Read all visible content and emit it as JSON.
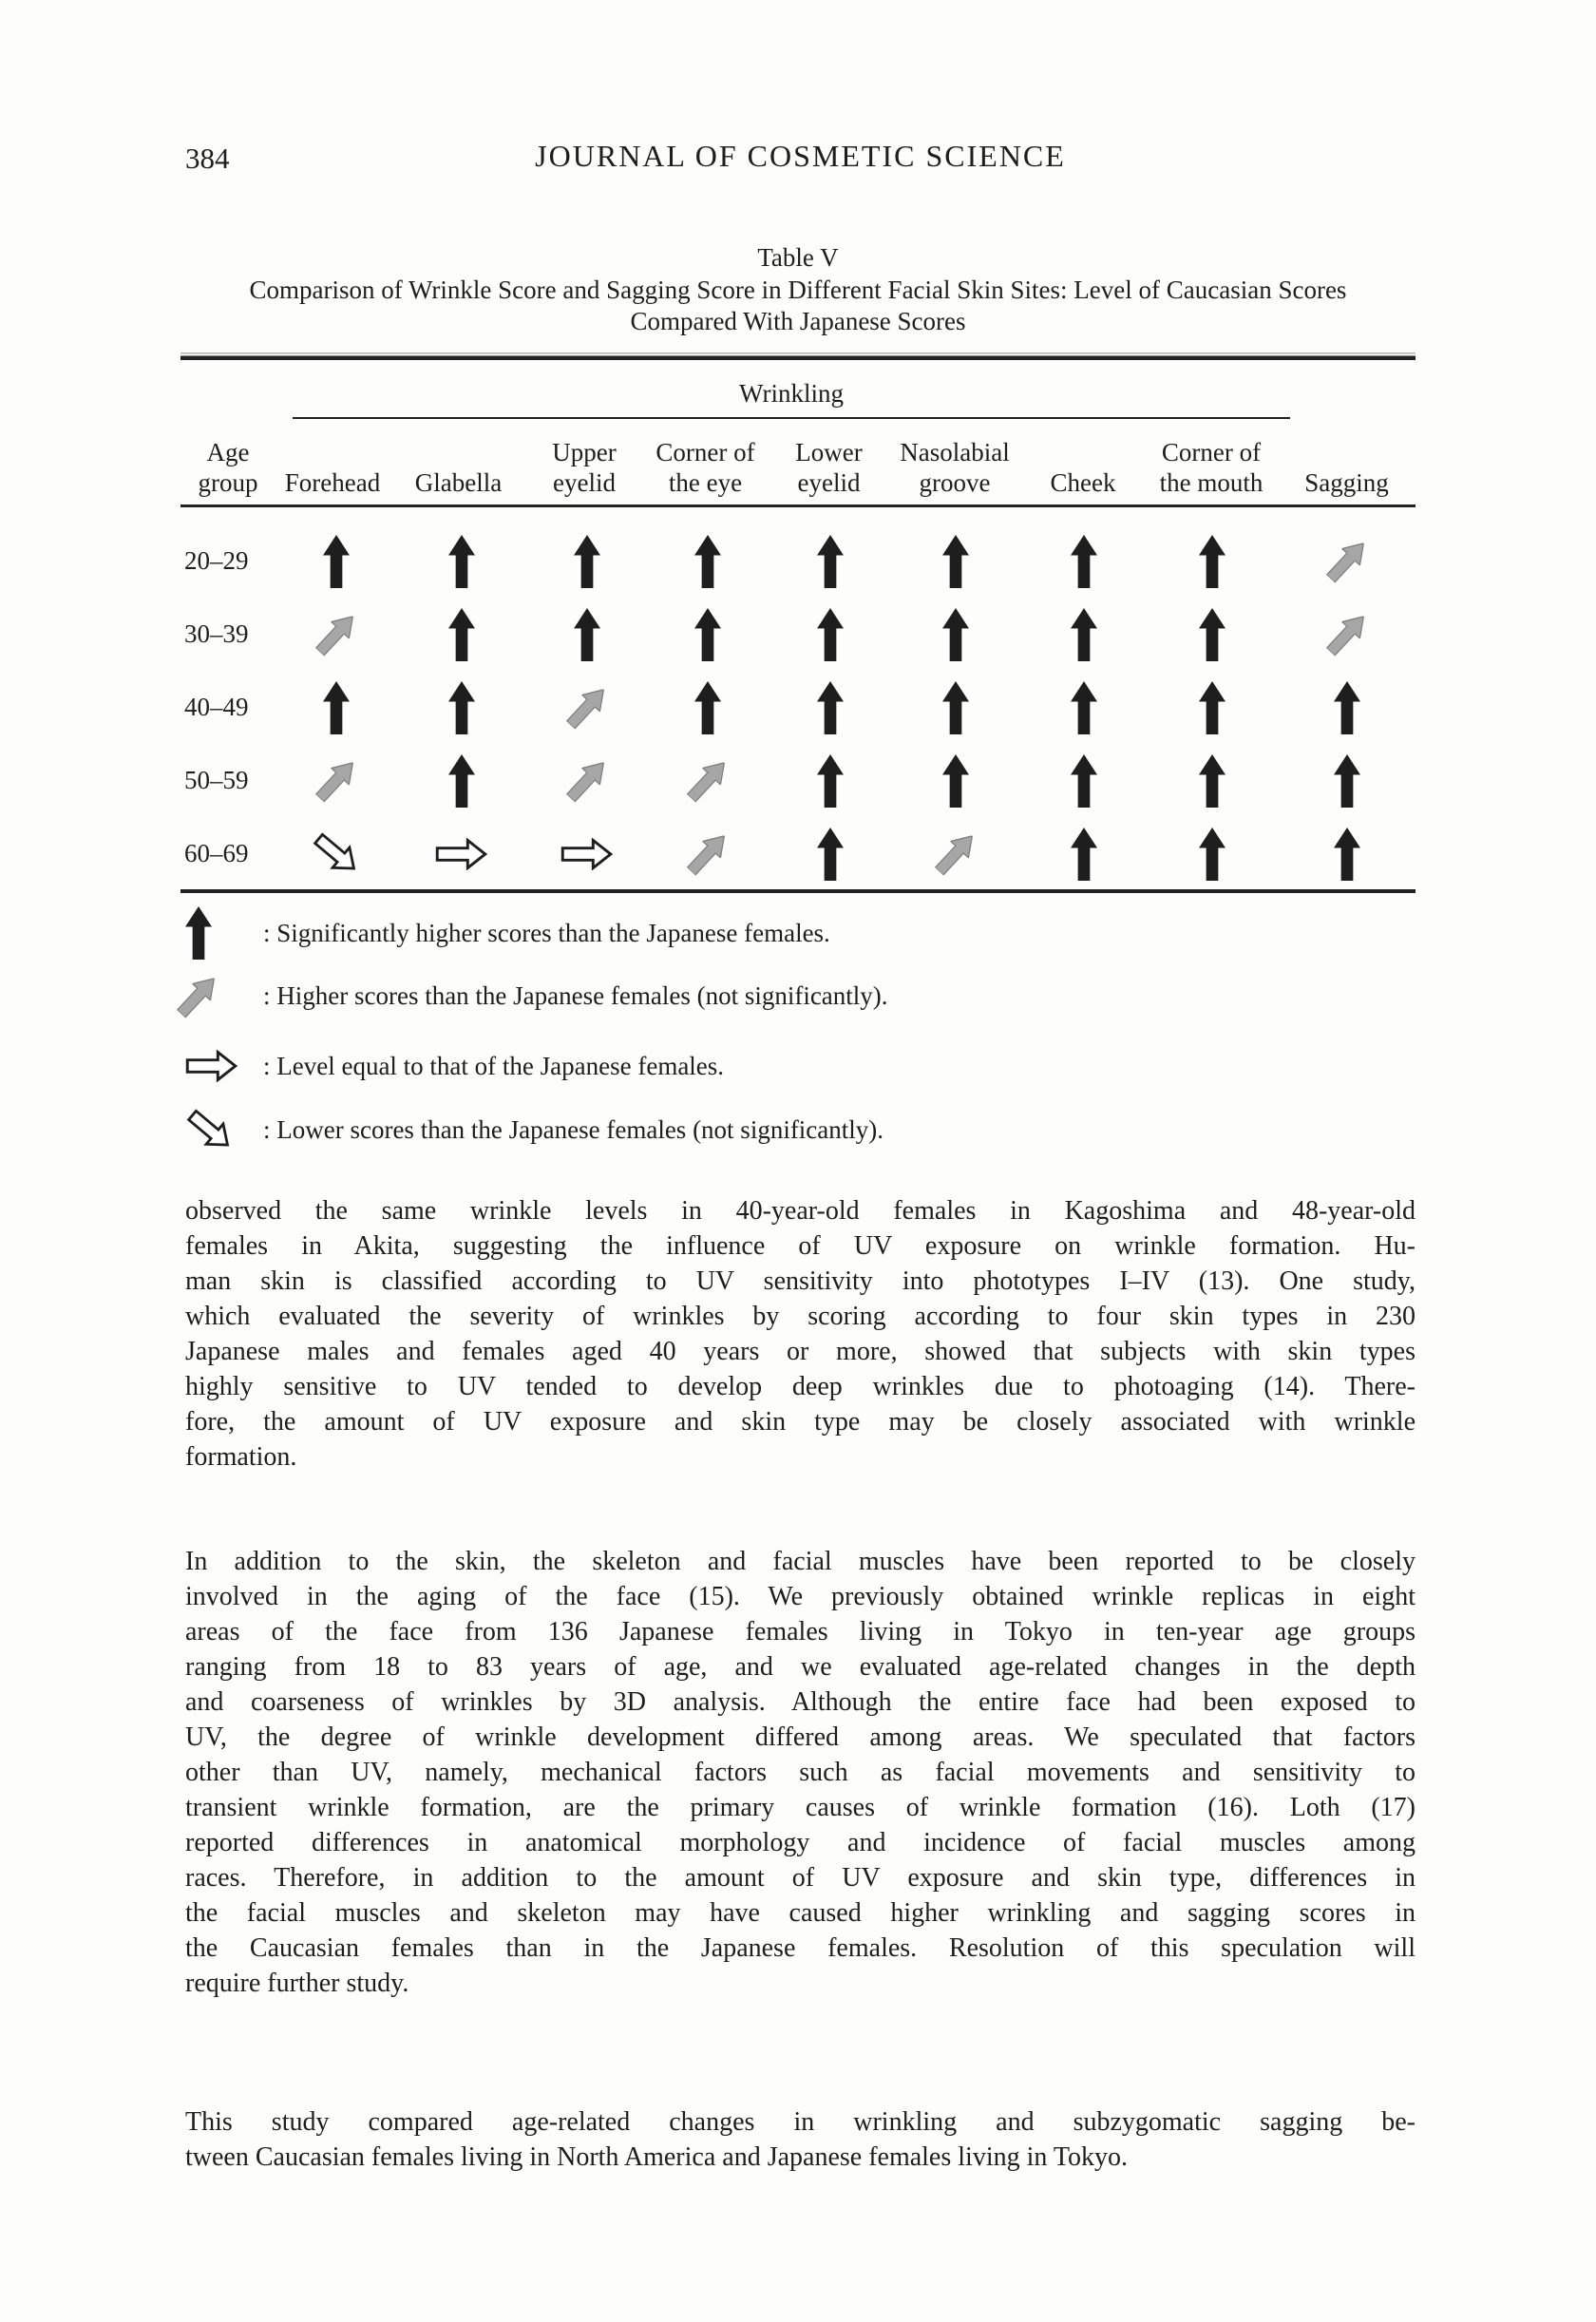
{
  "page": {
    "number": "384",
    "journal_title": "JOURNAL OF COSMETIC SCIENCE"
  },
  "table": {
    "title": "Table V",
    "caption_line1": "Comparison of Wrinkle Score and Sagging Score in Different Facial Skin Sites: Level of Caucasian Scores",
    "caption_line2": "Compared With Japanese Scores",
    "spanner": "Wrinkling",
    "columns": [
      "Age group",
      "Forehead",
      "Glabella",
      "Upper eyelid",
      "Corner of the eye",
      "Lower eyelid",
      "Nasolabial groove",
      "Cheek",
      "Corner of the mouth",
      "Sagging"
    ],
    "rows": [
      {
        "age_group": "20–29",
        "cells": [
          "sig_higher",
          "sig_higher",
          "sig_higher",
          "sig_higher",
          "sig_higher",
          "sig_higher",
          "sig_higher",
          "sig_higher",
          "higher"
        ]
      },
      {
        "age_group": "30–39",
        "cells": [
          "higher",
          "sig_higher",
          "sig_higher",
          "sig_higher",
          "sig_higher",
          "sig_higher",
          "sig_higher",
          "sig_higher",
          "higher"
        ]
      },
      {
        "age_group": "40–49",
        "cells": [
          "sig_higher",
          "sig_higher",
          "higher",
          "sig_higher",
          "sig_higher",
          "sig_higher",
          "sig_higher",
          "sig_higher",
          "sig_higher"
        ]
      },
      {
        "age_group": "50–59",
        "cells": [
          "higher",
          "sig_higher",
          "higher",
          "higher",
          "sig_higher",
          "sig_higher",
          "sig_higher",
          "sig_higher",
          "sig_higher"
        ]
      },
      {
        "age_group": "60–69",
        "cells": [
          "lower",
          "equal",
          "equal",
          "higher",
          "sig_higher",
          "higher",
          "sig_higher",
          "sig_higher",
          "sig_higher"
        ]
      }
    ]
  },
  "legend": [
    {
      "symbol": "sig_higher",
      "label": ": Significantly higher scores than the Japanese females."
    },
    {
      "symbol": "higher",
      "label": ": Higher scores than the Japanese females (not significantly)."
    },
    {
      "symbol": "equal",
      "label": ": Level equal to that of the Japanese females."
    },
    {
      "symbol": "lower",
      "label": ": Lower scores than the Japanese females (not significantly)."
    }
  ],
  "body": {
    "paragraphs": [
      [
        "observed the same wrinkle levels in 40-year-old females in Kagoshima and 48-year-old",
        "females in Akita, suggesting the influence of UV exposure on wrinkle formation. Hu-",
        "man skin is classified according to UV sensitivity into phototypes I–IV (13). One study,",
        "which evaluated the severity of wrinkles by scoring according to four skin types in 230",
        "Japanese males and females aged 40 years or more, showed that subjects with skin types",
        "highly sensitive to UV tended to develop deep wrinkles due to photoaging (14). There-",
        "fore, the amount of UV exposure and skin type may be closely associated with wrinkle",
        "formation."
      ],
      [
        "In addition to the skin, the skeleton and facial muscles have been reported to be closely",
        "involved in the aging of the face (15). We previously obtained wrinkle replicas in eight",
        "areas of the face from 136 Japanese females living in Tokyo in ten-year age groups",
        "ranging from 18 to 83 years of age, and we evaluated age-related changes in the depth",
        "and coarseness of wrinkles by 3D analysis. Although the entire face had been exposed to",
        "UV, the degree of wrinkle development differed among areas. We speculated that factors",
        "other than UV, namely, mechanical factors such as facial movements and sensitivity to",
        "transient wrinkle formation, are the primary causes of wrinkle formation (16). Loth (17)",
        "reported differences in anatomical morphology and incidence of facial muscles among",
        "races. Therefore, in addition to the amount of UV exposure and skin type, differences in",
        "the facial muscles and skeleton may have caused higher wrinkling and sagging scores in",
        "the Caucasian females than in the Japanese females. Resolution of this speculation will",
        "require further study."
      ],
      [
        "This study compared age-related changes in wrinkling and subzygomatic sagging be-",
        "tween Caucasian females living in North America and Japanese females living in Tokyo."
      ]
    ]
  },
  "colors": {
    "ink": "#1e1e1e",
    "gray_arrow_fill": "#a6a6a6",
    "gray_arrow_stroke": "#7e7e7e",
    "paper": "#fdfdfc"
  }
}
